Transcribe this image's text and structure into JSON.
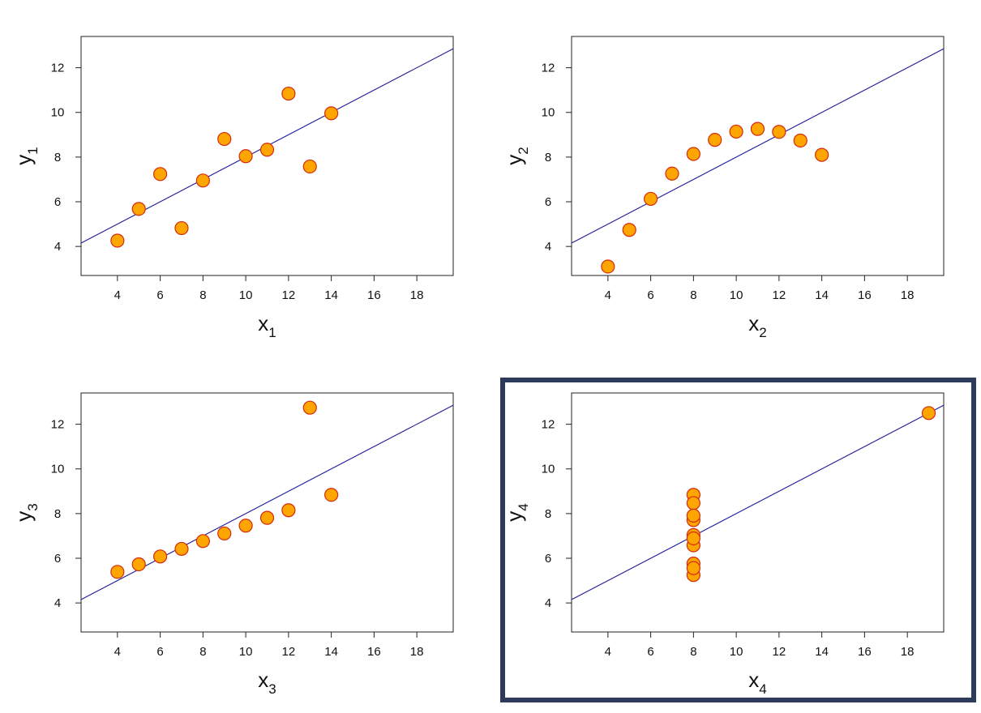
{
  "colors": {
    "marker_fill": "#ffa500",
    "marker_stroke": "#d42a0f",
    "fit_line": "#1a1a9c",
    "axes": "#222222",
    "highlight_frame": "#2d3a5a"
  },
  "highlighted_panel": 3,
  "chart_data": [
    {
      "type": "scatter",
      "title": "",
      "xlabel": "x",
      "xlabel_sub": "1",
      "ylabel": "y",
      "ylabel_sub": "1",
      "xlim": [
        2.3,
        19.7
      ],
      "ylim": [
        2.7,
        13.4
      ],
      "xticks": [
        "4",
        "6",
        "8",
        "10",
        "12",
        "14",
        "16",
        "18"
      ],
      "yticks": [
        "4",
        "6",
        "8",
        "10",
        "12"
      ],
      "grid": false,
      "regression_line": {
        "intercept": 3.0,
        "slope": 0.5
      },
      "points": [
        {
          "x": 10,
          "y": 8.04
        },
        {
          "x": 8,
          "y": 6.95
        },
        {
          "x": 13,
          "y": 7.58
        },
        {
          "x": 9,
          "y": 8.81
        },
        {
          "x": 11,
          "y": 8.33
        },
        {
          "x": 14,
          "y": 9.96
        },
        {
          "x": 6,
          "y": 7.24
        },
        {
          "x": 4,
          "y": 4.26
        },
        {
          "x": 12,
          "y": 10.84
        },
        {
          "x": 7,
          "y": 4.82
        },
        {
          "x": 5,
          "y": 5.68
        }
      ]
    },
    {
      "type": "scatter",
      "title": "",
      "xlabel": "x",
      "xlabel_sub": "2",
      "ylabel": "y",
      "ylabel_sub": "2",
      "xlim": [
        2.3,
        19.7
      ],
      "ylim": [
        2.7,
        13.4
      ],
      "xticks": [
        "4",
        "6",
        "8",
        "10",
        "12",
        "14",
        "16",
        "18"
      ],
      "yticks": [
        "4",
        "6",
        "8",
        "10",
        "12"
      ],
      "grid": false,
      "regression_line": {
        "intercept": 3.0,
        "slope": 0.5
      },
      "points": [
        {
          "x": 10,
          "y": 9.14
        },
        {
          "x": 8,
          "y": 8.14
        },
        {
          "x": 13,
          "y": 8.74
        },
        {
          "x": 9,
          "y": 8.77
        },
        {
          "x": 11,
          "y": 9.26
        },
        {
          "x": 14,
          "y": 8.1
        },
        {
          "x": 6,
          "y": 6.13
        },
        {
          "x": 4,
          "y": 3.1
        },
        {
          "x": 12,
          "y": 9.13
        },
        {
          "x": 7,
          "y": 7.26
        },
        {
          "x": 5,
          "y": 4.74
        }
      ]
    },
    {
      "type": "scatter",
      "title": "",
      "xlabel": "x",
      "xlabel_sub": "3",
      "ylabel": "y",
      "ylabel_sub": "3",
      "xlim": [
        2.3,
        19.7
      ],
      "ylim": [
        2.7,
        13.4
      ],
      "xticks": [
        "4",
        "6",
        "8",
        "10",
        "12",
        "14",
        "16",
        "18"
      ],
      "yticks": [
        "4",
        "6",
        "8",
        "10",
        "12"
      ],
      "grid": false,
      "regression_line": {
        "intercept": 3.0,
        "slope": 0.5
      },
      "points": [
        {
          "x": 10,
          "y": 7.46
        },
        {
          "x": 8,
          "y": 6.77
        },
        {
          "x": 13,
          "y": 12.74
        },
        {
          "x": 9,
          "y": 7.11
        },
        {
          "x": 11,
          "y": 7.81
        },
        {
          "x": 14,
          "y": 8.84
        },
        {
          "x": 6,
          "y": 6.08
        },
        {
          "x": 4,
          "y": 5.39
        },
        {
          "x": 12,
          "y": 8.15
        },
        {
          "x": 7,
          "y": 6.42
        },
        {
          "x": 5,
          "y": 5.73
        }
      ]
    },
    {
      "type": "scatter",
      "title": "",
      "xlabel": "x",
      "xlabel_sub": "4",
      "ylabel": "y",
      "ylabel_sub": "4",
      "xlim": [
        2.3,
        19.7
      ],
      "ylim": [
        2.7,
        13.4
      ],
      "xticks": [
        "4",
        "6",
        "8",
        "10",
        "12",
        "14",
        "16",
        "18"
      ],
      "yticks": [
        "4",
        "6",
        "8",
        "10",
        "12"
      ],
      "grid": false,
      "regression_line": {
        "intercept": 3.0,
        "slope": 0.5
      },
      "points": [
        {
          "x": 8,
          "y": 6.58
        },
        {
          "x": 8,
          "y": 5.76
        },
        {
          "x": 8,
          "y": 7.71
        },
        {
          "x": 8,
          "y": 8.84
        },
        {
          "x": 8,
          "y": 8.47
        },
        {
          "x": 8,
          "y": 7.04
        },
        {
          "x": 8,
          "y": 5.25
        },
        {
          "x": 19,
          "y": 12.5
        },
        {
          "x": 8,
          "y": 5.56
        },
        {
          "x": 8,
          "y": 7.91
        },
        {
          "x": 8,
          "y": 6.89
        }
      ]
    }
  ]
}
